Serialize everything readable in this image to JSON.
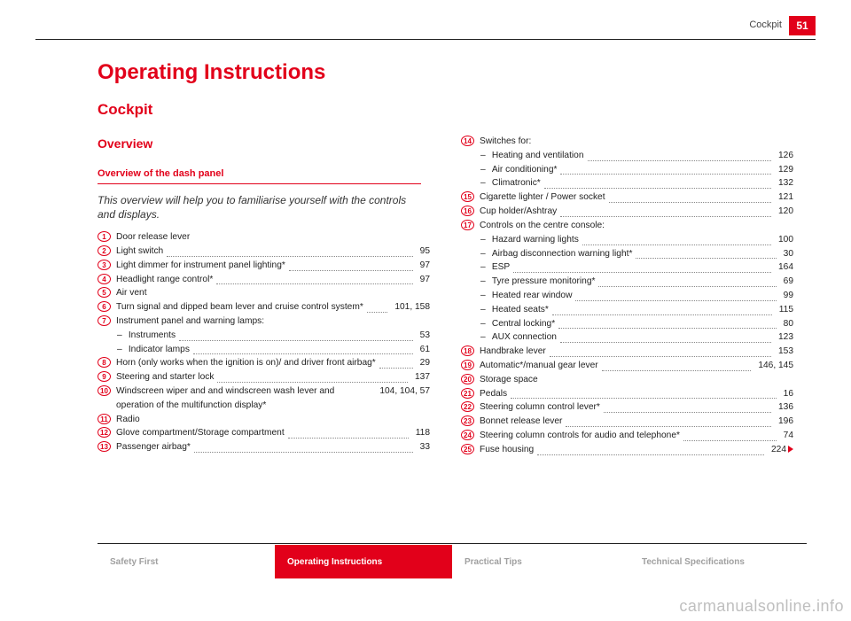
{
  "header": {
    "section": "Cockpit",
    "page_number": "51"
  },
  "titles": {
    "main": "Operating Instructions",
    "section": "Cockpit",
    "subsection": "Overview",
    "panel_heading": "Overview of the dash panel"
  },
  "intro": "This overview will help you to familiarise yourself with the controls and displays.",
  "colors": {
    "accent": "#e2001a",
    "rule": "#222222",
    "muted_tab": "#a0a0a0",
    "watermark": "#bfbfbf",
    "leader": "#888888",
    "background": "#ffffff"
  },
  "left_items": [
    {
      "n": "1",
      "label": "Door release lever"
    },
    {
      "n": "2",
      "label": "Light switch",
      "page": "95"
    },
    {
      "n": "3",
      "label": "Light dimmer for instrument panel lighting*",
      "page": "97"
    },
    {
      "n": "4",
      "label": "Headlight range control*",
      "page": "97"
    },
    {
      "n": "5",
      "label": "Air vent"
    },
    {
      "n": "6",
      "label": "Turn signal and dipped beam lever and cruise control system*",
      "page": "101, 158"
    },
    {
      "n": "7",
      "label": "Instrument panel and warning lamps:",
      "subs": [
        {
          "label": "Instruments",
          "page": "53"
        },
        {
          "label": "Indicator lamps",
          "page": "61"
        }
      ]
    },
    {
      "n": "8",
      "label": "Horn (only works when the ignition is on)/ and driver front airbag*",
      "page": "29"
    },
    {
      "n": "9",
      "label": "Steering and starter lock",
      "page": "137"
    },
    {
      "n": "10",
      "label": "Windscreen wiper and and windscreen wash lever and operation of the multifunction display*",
      "page": "104, 104, 57"
    },
    {
      "n": "11",
      "label": "Radio"
    },
    {
      "n": "12",
      "label": "Glove compartment/Storage compartment",
      "page": "118"
    },
    {
      "n": "13",
      "label": "Passenger airbag*",
      "page": "33"
    }
  ],
  "right_items": [
    {
      "n": "14",
      "label": "Switches for:",
      "subs": [
        {
          "label": "Heating and ventilation",
          "page": "126"
        },
        {
          "label": "Air conditioning*",
          "page": "129"
        },
        {
          "label": "Climatronic*",
          "page": "132"
        }
      ]
    },
    {
      "n": "15",
      "label": "Cigarette lighter / Power socket",
      "page": "121"
    },
    {
      "n": "16",
      "label": "Cup holder/Ashtray",
      "page": "120"
    },
    {
      "n": "17",
      "label": "Controls on the centre console:",
      "subs": [
        {
          "label": "Hazard warning lights",
          "page": "100"
        },
        {
          "label": "Airbag disconnection warning light*",
          "page": "30"
        },
        {
          "label": "ESP",
          "page": "164"
        },
        {
          "label": "Tyre pressure monitoring*",
          "page": "69"
        },
        {
          "label": "Heated rear window",
          "page": "99"
        },
        {
          "label": "Heated seats*",
          "page": "115"
        },
        {
          "label": "Central locking*",
          "page": "80"
        },
        {
          "label": "AUX connection",
          "page": "123"
        }
      ]
    },
    {
      "n": "18",
      "label": "Handbrake lever",
      "page": "153"
    },
    {
      "n": "19",
      "label": "Automatic*/manual gear lever",
      "page": "146, 145"
    },
    {
      "n": "20",
      "label": "Storage space"
    },
    {
      "n": "21",
      "label": "Pedals",
      "page": "16"
    },
    {
      "n": "22",
      "label": "Steering column control lever*",
      "page": "136"
    },
    {
      "n": "23",
      "label": "Bonnet release lever",
      "page": "196"
    },
    {
      "n": "24",
      "label": "Steering column controls for audio and telephone*",
      "page": "74"
    },
    {
      "n": "25",
      "label": "Fuse housing",
      "page": "224",
      "continues": true
    }
  ],
  "footer_tabs": [
    {
      "label": "Safety First",
      "active": false
    },
    {
      "label": "Operating Instructions",
      "active": true
    },
    {
      "label": "Practical Tips",
      "active": false
    },
    {
      "label": "Technical Specifications",
      "active": false
    }
  ],
  "watermark": "carmanualsonline.info"
}
